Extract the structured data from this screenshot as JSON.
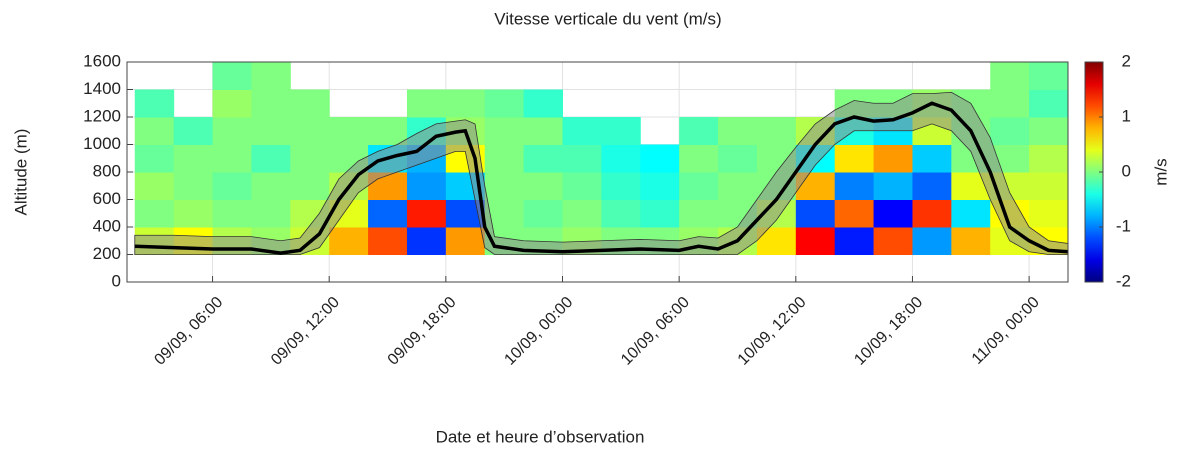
{
  "chart_data": {
    "type": "heatmap",
    "title": "Vitesse verticale du vent (m/s)",
    "xlabel": "Date et heure d’observation",
    "ylabel": "Altitude (m)",
    "xlim": [
      1.6,
      50
    ],
    "xticks": [
      {
        "value": 6,
        "label": "09/09, 06:00"
      },
      {
        "value": 12,
        "label": "09/09, 12:00"
      },
      {
        "value": 18,
        "label": "09/09, 18:00"
      },
      {
        "value": 24,
        "label": "10/09, 00:00"
      },
      {
        "value": 30,
        "label": "10/09, 06:00"
      },
      {
        "value": 36,
        "label": "10/09, 12:00"
      },
      {
        "value": 42,
        "label": "10/09, 18:00"
      },
      {
        "value": 48,
        "label": "11/09, 00:00"
      }
    ],
    "ylim": [
      0,
      1600
    ],
    "yticks": [
      0,
      200,
      400,
      600,
      800,
      1000,
      1200,
      1400,
      1600
    ],
    "grid": true,
    "bins": [
      2,
      4,
      6,
      8,
      10,
      12,
      14,
      16,
      18,
      20,
      22,
      24,
      26,
      28,
      30,
      32,
      34,
      36,
      38,
      40,
      42,
      44,
      46,
      48,
      50
    ],
    "rows": [
      200,
      400,
      600,
      800,
      1000,
      1200,
      1400,
      1600
    ],
    "z": [
      [
        0.3,
        0,
        0.1,
        -0.1,
        0,
        -0.2,
        null
      ],
      [
        0.5,
        0.1,
        0,
        0,
        -0.2,
        null,
        null
      ],
      [
        0.2,
        0,
        -0.1,
        0,
        0,
        0.1,
        -0.1
      ],
      [
        0.1,
        0,
        0,
        -0.2,
        0,
        0,
        0
      ],
      [
        0.3,
        0.2,
        0,
        0,
        0,
        0,
        null
      ],
      [
        0.8,
        0.4,
        0.2,
        0,
        0,
        null,
        null
      ],
      [
        1.2,
        -1.1,
        0.9,
        -0.6,
        0,
        null,
        null
      ],
      [
        -1.3,
        1.4,
        -0.9,
        -0.8,
        -0.3,
        0,
        null
      ],
      [
        0.9,
        -1.2,
        -0.7,
        0.5,
        0.1,
        0,
        null
      ],
      [
        0,
        0,
        0,
        0,
        0,
        -0.1,
        null
      ],
      [
        0,
        -0.1,
        0,
        -0.2,
        0,
        -0.3,
        null
      ],
      [
        0.1,
        0,
        -0.1,
        -0.2,
        -0.3,
        null,
        null
      ],
      [
        0,
        -0.2,
        -0.3,
        -0.4,
        -0.3,
        null,
        null
      ],
      [
        0,
        -0.3,
        -0.4,
        -0.5,
        null,
        null,
        null
      ],
      [
        0.1,
        0,
        -0.1,
        0,
        -0.2,
        null,
        null
      ],
      [
        0.2,
        0,
        0,
        -0.1,
        0,
        null,
        null
      ],
      [
        0.6,
        0.2,
        0,
        0,
        0,
        null,
        null
      ],
      [
        1.5,
        -1.2,
        0.8,
        -0.5,
        0.2,
        null,
        null
      ],
      [
        -1.4,
        1.1,
        -1,
        0.6,
        -0.4,
        0,
        null
      ],
      [
        1.2,
        -1.5,
        -0.8,
        0.9,
        -0.6,
        0,
        null
      ],
      [
        -0.9,
        1.3,
        -1.1,
        -0.7,
        0.3,
        0.1,
        null
      ],
      [
        0.8,
        -0.6,
        0.4,
        0,
        0,
        0,
        null
      ],
      [
        0.4,
        0.5,
        0.3,
        0,
        -0.1,
        0,
        0
      ],
      [
        0.5,
        0.4,
        0.3,
        0.2,
        0,
        -0.2,
        -0.1
      ]
    ],
    "colorbar": {
      "lim": [
        -2,
        2
      ],
      "ticks": [
        -2,
        -1,
        0,
        1,
        2
      ],
      "label": "m/s"
    },
    "line": {
      "color": "#000000",
      "band_color": "#8c8c8c",
      "x": [
        2,
        4,
        6,
        8,
        9.5,
        10.5,
        11.5,
        12.5,
        13.5,
        14.5,
        15.5,
        16.5,
        17.5,
        18.5,
        19,
        19.5,
        20,
        20.5,
        22,
        24,
        26,
        28,
        30,
        31,
        32,
        33,
        34,
        35,
        36,
        37,
        38,
        39,
        40,
        41,
        42,
        43,
        44,
        45,
        46,
        47,
        48,
        49,
        50
      ],
      "values": [
        260,
        250,
        240,
        240,
        210,
        230,
        350,
        600,
        780,
        880,
        920,
        950,
        1060,
        1090,
        1100,
        900,
        400,
        260,
        230,
        220,
        230,
        240,
        230,
        260,
        240,
        300,
        450,
        600,
        800,
        1000,
        1150,
        1200,
        1170,
        1180,
        1230,
        1300,
        1250,
        1100,
        800,
        400,
        300,
        230,
        220
      ],
      "lower": [
        200,
        200,
        200,
        200,
        200,
        200,
        250,
        450,
        650,
        750,
        800,
        850,
        900,
        950,
        950,
        600,
        250,
        200,
        200,
        200,
        200,
        200,
        200,
        200,
        200,
        200,
        300,
        450,
        650,
        850,
        1000,
        1100,
        1100,
        1100,
        1100,
        1150,
        1100,
        950,
        600,
        300,
        220,
        200,
        200
      ],
      "upper": [
        340,
        340,
        330,
        330,
        300,
        320,
        500,
        750,
        880,
        950,
        1000,
        1080,
        1150,
        1170,
        1180,
        1150,
        700,
        330,
        300,
        290,
        300,
        310,
        300,
        330,
        320,
        400,
        600,
        800,
        980,
        1150,
        1250,
        1320,
        1300,
        1300,
        1370,
        1370,
        1380,
        1300,
        1050,
        650,
        400,
        300,
        280
      ]
    }
  }
}
